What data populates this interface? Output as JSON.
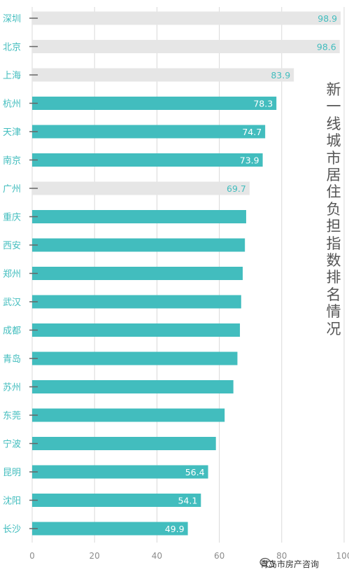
{
  "chart_data": {
    "type": "bar",
    "orientation": "horizontal",
    "title": "新一线城市居住负担指数排名情况",
    "categories": [
      "深圳",
      "北京",
      "上海",
      "杭州",
      "天津",
      "南京",
      "广州",
      "重庆",
      "西安",
      "郑州",
      "武汉",
      "成都",
      "青岛",
      "苏州",
      "东莞",
      "宁波",
      "昆明",
      "沈阳",
      "长沙"
    ],
    "values": [
      98.9,
      98.6,
      83.9,
      78.3,
      74.7,
      73.9,
      69.7,
      68.6,
      68.2,
      67.5,
      67.0,
      66.6,
      65.8,
      64.5,
      61.7,
      58.9,
      56.4,
      54.1,
      49.9
    ],
    "data_labels": [
      "98.9",
      "98.6",
      "83.9",
      "78.3",
      "74.7",
      "73.9",
      "69.7",
      "",
      "",
      "",
      "",
      "",
      "",
      "",
      "",
      "",
      "56.4",
      "54.1",
      "49.9"
    ],
    "highlighted": [
      false,
      false,
      false,
      true,
      true,
      true,
      false,
      true,
      true,
      true,
      true,
      true,
      true,
      true,
      true,
      true,
      true,
      true,
      true
    ],
    "xlim": [
      0,
      100
    ],
    "xticks": [
      "0",
      "20",
      "40",
      "60",
      "80",
      "100"
    ],
    "grid": true,
    "colors": {
      "highlight": "#42bdbe",
      "muted": "#e6e6e6",
      "label_on_highlight": "#ffffff",
      "label_on_muted": "#42bdbe",
      "category_text": "#42bdbe",
      "grid": "#d9d9d9"
    }
  },
  "watermark": {
    "text": "青岛市房产咨询",
    "icon": "wechat-icon"
  }
}
